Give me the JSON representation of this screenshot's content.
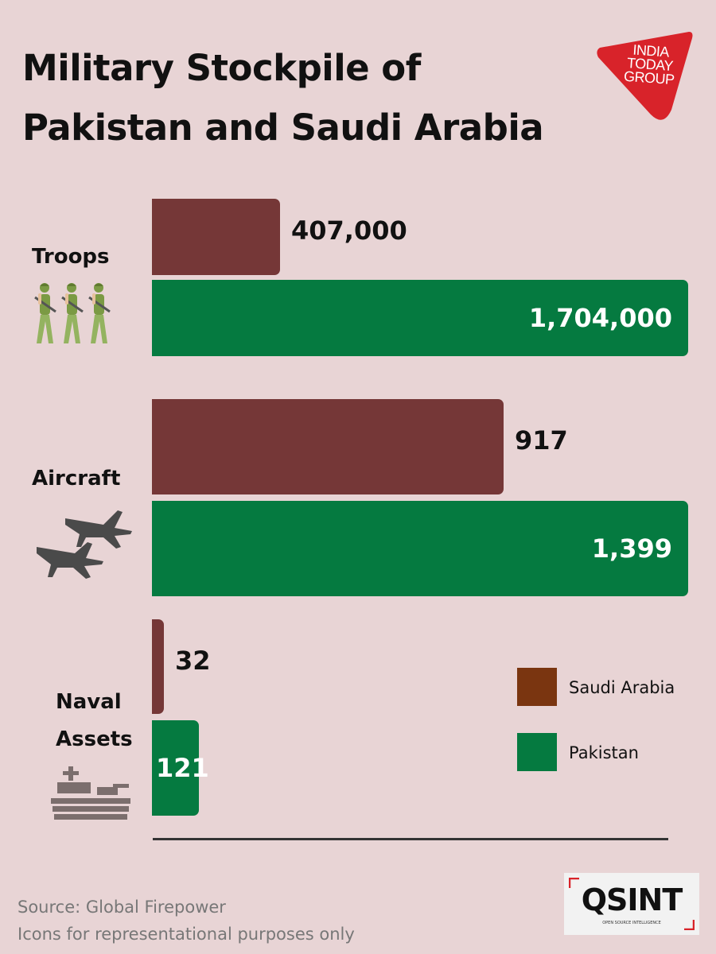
{
  "title_lines": [
    "Military Stockpile of",
    "Pakistan and Saudi Arabia"
  ],
  "logo": {
    "lines": [
      "INDIA",
      "TODAY",
      "GROUP"
    ],
    "color": "#d8232a"
  },
  "legend": [
    {
      "label": "Saudi Arabia",
      "color": "#7a3510"
    },
    {
      "label": "Pakistan",
      "color": "#057a40"
    }
  ],
  "source_line": "Source: Global Firepower",
  "disclaimer": "Icons for representational purposes only",
  "osint": {
    "text": "QSINT",
    "subtitle": "OPEN SOURCE INTELLIGENCE"
  },
  "colors": {
    "saudi_bar": "#753737",
    "pakistan_bar": "#057a40",
    "background": "#e8d4d5"
  },
  "chart_data": {
    "type": "bar",
    "orientation": "horizontal",
    "categories": [
      "Troops",
      "Aircraft",
      "Naval Assets"
    ],
    "category_icons": [
      "soldiers-icon",
      "fighter-jets-icon",
      "warship-icon"
    ],
    "series": [
      {
        "name": "Saudi Arabia",
        "values": [
          407000,
          917,
          32
        ],
        "labels": [
          "407,000",
          "917",
          "32"
        ]
      },
      {
        "name": "Pakistan",
        "values": [
          1704000,
          1399,
          121
        ],
        "labels": [
          "1,704,000",
          "1,399",
          "121"
        ]
      }
    ],
    "grid": false,
    "legend_position": "bottom-right"
  }
}
